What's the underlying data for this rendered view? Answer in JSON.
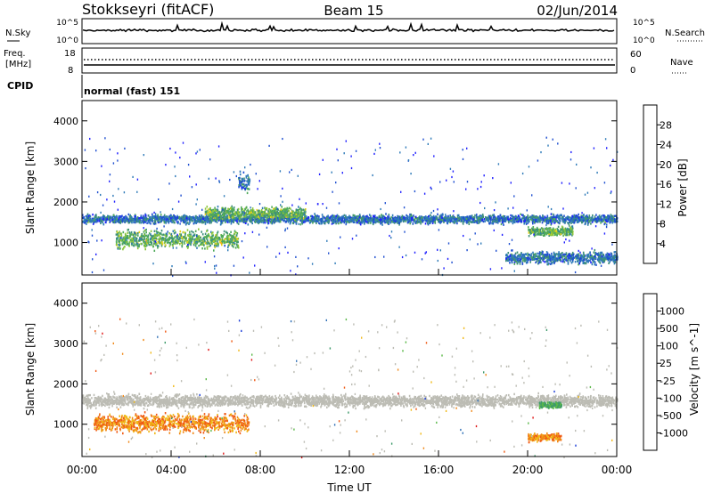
{
  "header": {
    "title": "Stokkseyri (fitACF)",
    "beam": "Beam 15",
    "date": "02/Jun/2014"
  },
  "noise_panel": {
    "left_label": "N.Sky",
    "right_label": "N.Search",
    "left_top_tick": "10^5",
    "left_bottom_tick": "10^0",
    "right_top_tick": "10^5",
    "right_bottom_tick": "10^0"
  },
  "freq_panel": {
    "left_label_line1": "Freq.",
    "left_label_line2": "[MHz]",
    "right_label": "Nave",
    "left_ticks": [
      "18",
      "8"
    ],
    "right_ticks": [
      "60",
      "0"
    ]
  },
  "cpid_panel": {
    "label": "CPID",
    "value": "normal (fast) 151"
  },
  "x_axis": {
    "label": "Time UT",
    "ticks": [
      "00:00",
      "04:00",
      "08:00",
      "12:00",
      "16:00",
      "20:00",
      "00:00"
    ]
  },
  "colors": {
    "background": "#ffffff",
    "empty_data": "#ffffff",
    "ground_scatter": "#bcbcb4"
  },
  "chart_data": [
    {
      "type": "heatmap",
      "ylabel": "Slant Range [km]",
      "ylim": [
        200,
        4500
      ],
      "y_ticks": [
        1000,
        2000,
        3000,
        4000
      ],
      "xlim": [
        0,
        24
      ],
      "colorbar": {
        "label": "Power [dB]",
        "range": [
          0,
          32
        ],
        "ticks": [
          "4",
          "8",
          "12",
          "16",
          "20",
          "24",
          "28"
        ],
        "colors": [
          "#1f1fff",
          "#1f4fd0",
          "#2e7ab8",
          "#3e9078",
          "#4faa5a",
          "#8cc63a",
          "#e8d21a",
          "#f0a81a",
          "#f07a18",
          "#e84a14",
          "#e01818"
        ]
      },
      "features": [
        {
          "time_start": 0,
          "time_end": 24,
          "range_center": 1600,
          "range_width": 150,
          "level": "moderate"
        },
        {
          "time_start": 1.5,
          "time_end": 7,
          "range_center": 1100,
          "range_width": 300,
          "level": "strong"
        },
        {
          "time_start": 5.5,
          "time_end": 10,
          "range_center": 1750,
          "range_width": 200,
          "level": "strong"
        },
        {
          "time_start": 7,
          "time_end": 7.5,
          "range_center": 2500,
          "range_width": 300,
          "level": "moderate"
        },
        {
          "time_start": 20,
          "time_end": 22,
          "range_center": 1300,
          "range_width": 150,
          "level": "strong"
        },
        {
          "time_start": 19,
          "time_end": 24,
          "range_center": 650,
          "range_width": 200,
          "level": "moderate"
        }
      ]
    },
    {
      "type": "heatmap",
      "ylabel": "Slant Range [km]",
      "ylim": [
        200,
        4500
      ],
      "y_ticks": [
        1000,
        2000,
        3000,
        4000
      ],
      "xlim": [
        0,
        24
      ],
      "colorbar": {
        "label": "Velocity [m s^-1]",
        "ticks": [
          "1000",
          "500",
          "100",
          "25",
          "-25",
          "-100",
          "-500",
          "-1000"
        ],
        "colors": [
          "#1a3cd8",
          "#2f6fb6",
          "#3e9a6a",
          "#5ab848",
          "#bcbcb4",
          "#bcbcb4",
          "#f0b818",
          "#f08818",
          "#f05a14",
          "#e01818"
        ]
      },
      "features": [
        {
          "time_start": 0,
          "time_end": 24,
          "range_center": 1600,
          "range_width": 200,
          "class": "ground scatter"
        },
        {
          "time_start": 0.5,
          "time_end": 7.5,
          "range_center": 1050,
          "range_width": 300,
          "velocity": "negative"
        },
        {
          "time_start": 20,
          "time_end": 21.5,
          "range_center": 700,
          "range_width": 150,
          "velocity": "negative"
        },
        {
          "time_start": 20.5,
          "time_end": 21.5,
          "range_center": 1500,
          "range_width": 100,
          "velocity": "positive"
        }
      ]
    }
  ]
}
